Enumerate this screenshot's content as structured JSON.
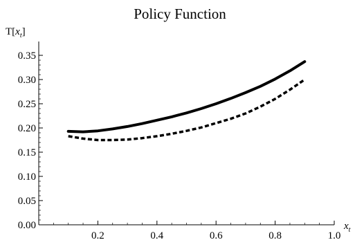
{
  "chart_data": {
    "type": "line",
    "title": "Policy Function",
    "xlabel": "x_t",
    "ylabel": "T[x_t]",
    "xlim": [
      0.0,
      1.0
    ],
    "ylim": [
      0.0,
      0.37
    ],
    "x_ticks": [
      "0.2",
      "0.4",
      "0.6",
      "0.8",
      "1.0"
    ],
    "y_ticks": [
      "0.00",
      "0.05",
      "0.10",
      "0.15",
      "0.20",
      "0.25",
      "0.30",
      "0.35"
    ],
    "grid": false,
    "legend": false,
    "series": [
      {
        "style": "solid",
        "color": "#000000",
        "x": [
          0.1,
          0.15,
          0.2,
          0.25,
          0.3,
          0.35,
          0.4,
          0.45,
          0.5,
          0.55,
          0.6,
          0.65,
          0.7,
          0.75,
          0.8,
          0.85,
          0.9
        ],
        "y": [
          0.193,
          0.192,
          0.194,
          0.198,
          0.203,
          0.209,
          0.216,
          0.223,
          0.231,
          0.24,
          0.25,
          0.261,
          0.273,
          0.286,
          0.301,
          0.318,
          0.337
        ]
      },
      {
        "style": "dashed",
        "color": "#000000",
        "x": [
          0.1,
          0.15,
          0.2,
          0.25,
          0.3,
          0.35,
          0.4,
          0.45,
          0.5,
          0.55,
          0.6,
          0.65,
          0.7,
          0.75,
          0.8,
          0.85,
          0.9
        ],
        "y": [
          0.183,
          0.178,
          0.175,
          0.175,
          0.176,
          0.179,
          0.183,
          0.188,
          0.194,
          0.201,
          0.21,
          0.219,
          0.23,
          0.244,
          0.26,
          0.279,
          0.3
        ]
      }
    ]
  }
}
